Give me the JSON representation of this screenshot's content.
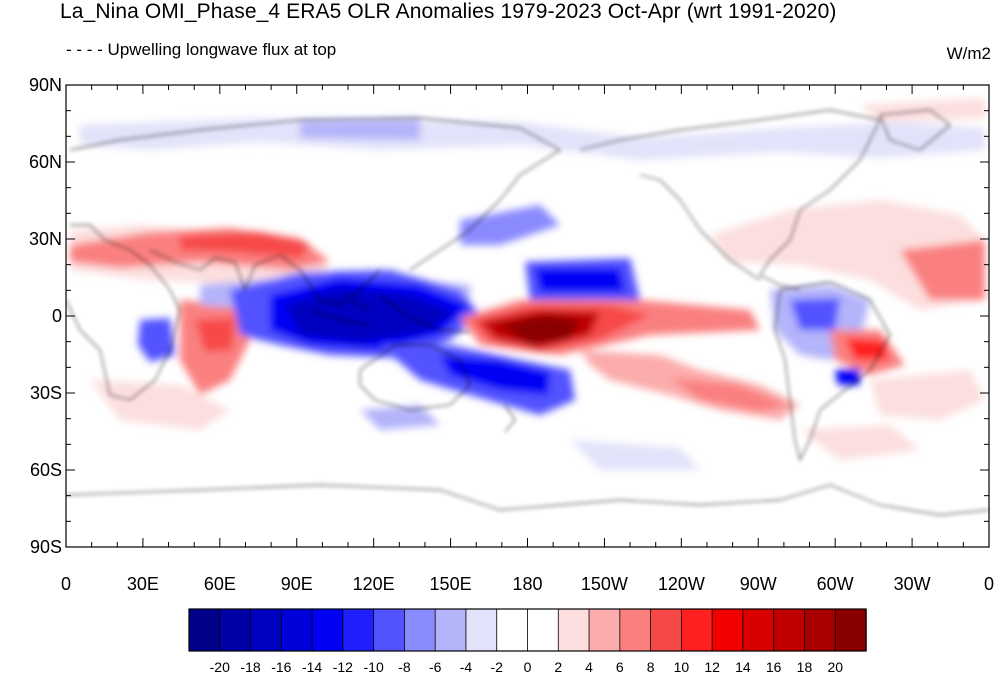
{
  "title": "La_Nina OMI_Phase_4 ERA5 OLR Anomalies 1979-2023 Oct-Apr (wrt 1991-2020)",
  "subtitle": "- - - - Upwelling longwave flux at top",
  "units": "W/m2",
  "map": {
    "y_tick_labels": [
      "90N",
      "60N",
      "30N",
      "0",
      "30S",
      "60S",
      "90S"
    ],
    "x_tick_labels": [
      "0",
      "30E",
      "60E",
      "90E",
      "120E",
      "150E",
      "180",
      "150W",
      "120W",
      "90W",
      "60W",
      "30W",
      "0"
    ],
    "projection": "cylindrical equidistant, 0 to 360 longitude",
    "coastlines": true
  },
  "colorbar": {
    "labels": [
      "-20",
      "-18",
      "-16",
      "-14",
      "-12",
      "-10",
      "-8",
      "-6",
      "-4",
      "-2",
      "0",
      "2",
      "4",
      "6",
      "8",
      "10",
      "12",
      "14",
      "16",
      "18",
      "20"
    ],
    "colors": [
      "#00008a",
      "#0000a6",
      "#0000c0",
      "#0000da",
      "#0000f5",
      "#2020ff",
      "#5252ff",
      "#8a8aff",
      "#b4b4fa",
      "#e2e2fa",
      "#ffffff",
      "#ffffff",
      "#fcdede",
      "#fcacac",
      "#fa8080",
      "#f74848",
      "#ff2020",
      "#f20000",
      "#d90000",
      "#c00000",
      "#a80000",
      "#8a0000"
    ]
  }
}
